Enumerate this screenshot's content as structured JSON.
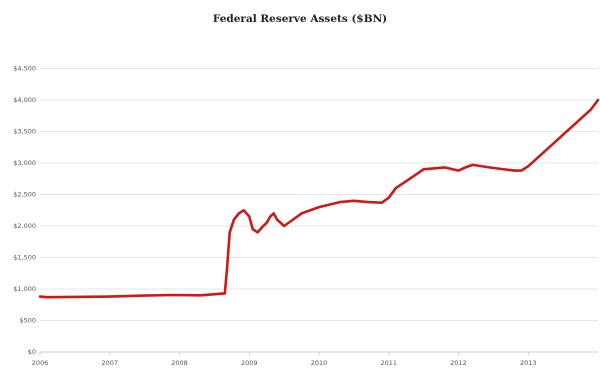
{
  "chart_data": {
    "type": "line",
    "title": "Federal Reserve Assets ($BN)",
    "xlabel": "",
    "ylabel": "",
    "ylim": [
      0,
      5000
    ],
    "y_ticks": [
      0,
      500,
      1000,
      1500,
      2000,
      2500,
      3000,
      3500,
      4000,
      4500
    ],
    "y_tick_labels": [
      "$0",
      "$500",
      "$1,000",
      "$1,500",
      "$2,000",
      "$2,500",
      "$3,000",
      "$3,500",
      "$4,000",
      "$4,500"
    ],
    "xlim": [
      2006,
      2014
    ],
    "x_ticks": [
      2006,
      2007,
      2008,
      2009,
      2010,
      2011,
      2012,
      2013
    ],
    "x_tick_labels": [
      "2006",
      "2007",
      "2008",
      "2009",
      "2010",
      "2011",
      "2012",
      "2013"
    ],
    "grid": true,
    "legend": "none",
    "colors": {
      "series": "#cc1a1a",
      "grid": "#e4e4e4"
    },
    "series": [
      {
        "x": [
          2006.0,
          2006.1,
          2006.5,
          2007.0,
          2007.5,
          2007.9,
          2008.3,
          2008.65,
          2008.68,
          2008.72,
          2008.78,
          2008.85,
          2008.92,
          2009.0,
          2009.05,
          2009.12,
          2009.2,
          2009.25,
          2009.3,
          2009.35,
          2009.4,
          2009.5,
          2009.6,
          2009.75,
          2010.0,
          2010.3,
          2010.5,
          2010.7,
          2010.9,
          2011.0,
          2011.1,
          2011.3,
          2011.5,
          2011.8,
          2012.0,
          2012.1,
          2012.2,
          2012.5,
          2012.8,
          2012.9,
          2013.0,
          2013.3,
          2013.6,
          2013.9,
          2014.0
        ],
        "values": [
          880,
          870,
          875,
          880,
          895,
          905,
          900,
          930,
          1300,
          1900,
          2100,
          2200,
          2250,
          2150,
          1950,
          1900,
          2000,
          2050,
          2150,
          2200,
          2100,
          2000,
          2080,
          2200,
          2300,
          2380,
          2400,
          2380,
          2370,
          2450,
          2600,
          2750,
          2900,
          2930,
          2880,
          2930,
          2970,
          2920,
          2880,
          2880,
          2950,
          3250,
          3550,
          3850,
          4000
        ]
      }
    ]
  }
}
